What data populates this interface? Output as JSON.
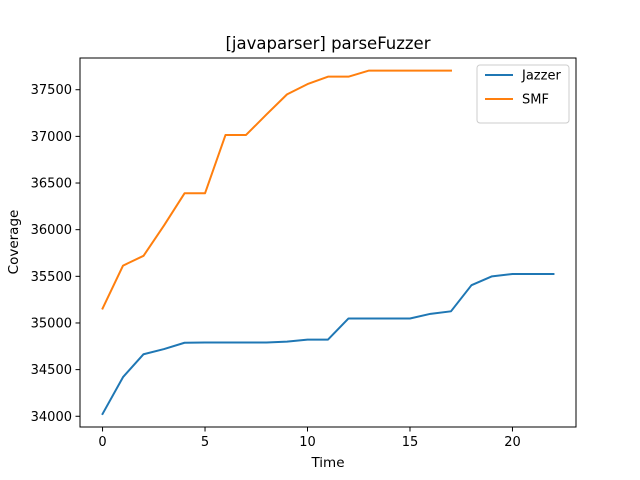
{
  "chart_data": {
    "type": "line",
    "title": "[javaparser] parseFuzzer",
    "xlabel": "Time",
    "ylabel": "Coverage",
    "xlim": [
      -1.1,
      23.1
    ],
    "ylim": [
      33885,
      37840
    ],
    "xticks": [
      0,
      5,
      10,
      15,
      20
    ],
    "yticks": [
      34000,
      34500,
      35000,
      35500,
      36000,
      36500,
      37000,
      37500
    ],
    "grid": false,
    "legend_position": "top-right",
    "series": [
      {
        "name": "Jazzer",
        "color": "#1f77b4",
        "x": [
          0,
          1,
          2,
          3,
          4,
          5,
          6,
          7,
          8,
          9,
          10,
          11,
          12,
          13,
          14,
          15,
          16,
          17,
          18,
          19,
          20,
          21,
          22
        ],
        "values": [
          34025,
          34420,
          34665,
          34720,
          34788,
          34790,
          34790,
          34790,
          34790,
          34800,
          34822,
          34822,
          35048,
          35048,
          35048,
          35048,
          35098,
          35125,
          35405,
          35500,
          35525,
          35525,
          35525
        ]
      },
      {
        "name": "SMF",
        "color": "#ff7f0e",
        "x": [
          0,
          1,
          2,
          3,
          4,
          5,
          6,
          7,
          8,
          9,
          10,
          11,
          12,
          13,
          14,
          15,
          16,
          17
        ],
        "values": [
          35155,
          35615,
          35720,
          36045,
          36390,
          36390,
          37015,
          37015,
          37235,
          37450,
          37560,
          37640,
          37640,
          37705,
          37705,
          37705,
          37705,
          37705
        ]
      }
    ]
  }
}
